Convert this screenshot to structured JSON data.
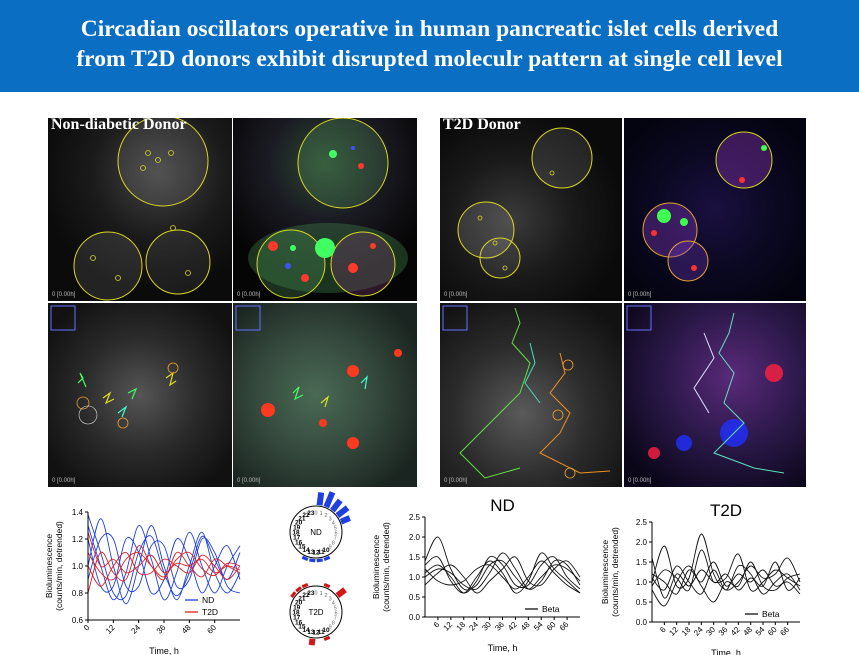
{
  "header": {
    "title_line1": "Circadian oscillators operative in human pancreatic islet cells derived",
    "title_line2": "from T2D donors exhibit disrupted moleculr pattern at single cell level",
    "background": "#0a6fc2"
  },
  "microscopy": {
    "nd_label": "Non-diabetic Donor",
    "t2d_label": "T2D Donor",
    "timestamp": "0 [0.00h]"
  },
  "chart_data": [
    {
      "type": "line",
      "title": "",
      "xlabel": "Time, h",
      "ylabel_line1": "Bioluminescence",
      "ylabel_line2": "(counts/min, detrended)",
      "xlim": [
        0,
        72
      ],
      "ylim": [
        0.6,
        1.4
      ],
      "xticks": [
        "0",
        "12",
        "24",
        "36",
        "48",
        "60"
      ],
      "yticks": [
        "0.6",
        "0.8",
        "1.0",
        "1.2",
        "1.4"
      ],
      "x": [
        0,
        6,
        12,
        18,
        24,
        30,
        36,
        42,
        48,
        54,
        60,
        66,
        72
      ],
      "legend": "bottom-right",
      "series": [
        {
          "name": "ND",
          "color": "#1f3fe0",
          "lines": [
            [
              1.3,
              1.0,
              0.75,
              0.95,
              1.3,
              1.05,
              0.75,
              0.95,
              1.25,
              1.0,
              0.8,
              1.0,
              1.15
            ],
            [
              1.0,
              1.35,
              1.0,
              0.72,
              1.0,
              1.3,
              1.0,
              0.75,
              1.0,
              1.25,
              0.95,
              0.8,
              0.95
            ],
            [
              1.2,
              0.85,
              0.85,
              1.2,
              1.1,
              0.8,
              0.9,
              1.2,
              1.05,
              0.8,
              1.0,
              1.15,
              0.9
            ],
            [
              0.9,
              1.2,
              1.2,
              0.85,
              0.85,
              1.15,
              1.15,
              0.85,
              0.9,
              1.2,
              1.1,
              0.85,
              0.8
            ],
            [
              1.38,
              1.1,
              0.8,
              0.78,
              1.1,
              1.22,
              0.95,
              0.78,
              0.95,
              1.22,
              1.05,
              0.9,
              1.1
            ]
          ]
        },
        {
          "name": "T2D",
          "color": "#e02020",
          "lines": [
            [
              1.1,
              0.95,
              0.9,
              1.05,
              1.1,
              1.0,
              0.92,
              1.05,
              1.1,
              0.98,
              0.93,
              1.02,
              1.0
            ],
            [
              1.25,
              1.0,
              1.05,
              0.95,
              1.0,
              1.08,
              0.95,
              1.02,
              1.0,
              1.05,
              0.95,
              1.0,
              0.97
            ],
            [
              0.8,
              1.1,
              0.95,
              0.9,
              1.15,
              1.0,
              0.9,
              1.1,
              1.0,
              0.92,
              1.05,
              1.0,
              0.95
            ],
            [
              1.0,
              0.85,
              1.0,
              1.1,
              0.95,
              0.95,
              1.05,
              1.0,
              0.95,
              1.08,
              1.0,
              0.9,
              1.0
            ]
          ]
        }
      ]
    },
    {
      "type": "rose",
      "title": "ND",
      "hour_labels": [
        "0",
        "1",
        "2",
        "3",
        "4",
        "5",
        "6",
        "7",
        "8",
        "9",
        "10",
        "11",
        "12",
        "13",
        "14",
        "15",
        "16",
        "17",
        "18",
        "19",
        "20",
        "21",
        "22",
        "23"
      ],
      "color": "#1f3fe0",
      "counts": [
        4,
        5,
        4,
        4,
        3,
        0,
        0,
        0,
        0,
        0,
        1,
        1,
        1,
        1,
        0,
        0,
        0,
        0,
        0,
        0,
        0,
        0,
        0,
        0
      ]
    },
    {
      "type": "rose",
      "title": "T2D",
      "hour_labels": [
        "0",
        "1",
        "2",
        "3",
        "4",
        "5",
        "6",
        "7",
        "8",
        "9",
        "10",
        "11",
        "12",
        "13",
        "14",
        "15",
        "16",
        "17",
        "18",
        "19",
        "20",
        "21",
        "22",
        "23"
      ],
      "color": "#d01818",
      "counts": [
        0,
        1,
        0,
        3,
        0,
        0,
        0,
        0,
        0,
        0,
        1,
        0,
        2,
        0,
        0,
        0,
        0,
        0,
        0,
        0,
        1,
        1,
        1,
        0
      ]
    },
    {
      "type": "line",
      "title": "ND",
      "xlabel": "Time, h",
      "ylabel_line1": "Bioluminescence",
      "ylabel_line2": "(counts/min, detrended)",
      "xlim": [
        0,
        72
      ],
      "ylim": [
        0,
        2.5
      ],
      "xticks": [
        "6",
        "12",
        "18",
        "24",
        "30",
        "36",
        "42",
        "48",
        "54",
        "60",
        "66"
      ],
      "yticks": [
        "0.0",
        "0.5",
        "1.0",
        "1.5",
        "2.0",
        "2.5"
      ],
      "x": [
        0,
        6,
        12,
        18,
        24,
        30,
        36,
        42,
        48,
        54,
        60,
        66,
        72
      ],
      "legend": "bottom-right",
      "series": [
        {
          "name": "Beta",
          "color": "#111111",
          "lines": [
            [
              1.4,
              2.0,
              1.2,
              0.7,
              0.8,
              1.3,
              1.4,
              1.0,
              0.7,
              1.0,
              1.3,
              1.2,
              0.9
            ],
            [
              1.1,
              1.3,
              1.0,
              0.6,
              0.9,
              1.5,
              1.3,
              0.8,
              0.8,
              1.3,
              1.5,
              1.0,
              0.7
            ],
            [
              1.0,
              1.2,
              1.1,
              0.8,
              0.7,
              1.1,
              1.6,
              1.2,
              0.7,
              0.9,
              1.4,
              1.3,
              0.8
            ],
            [
              1.2,
              0.9,
              0.8,
              0.9,
              1.2,
              1.3,
              1.0,
              0.7,
              1.0,
              1.4,
              1.1,
              0.8,
              0.6
            ],
            [
              0.8,
              1.1,
              1.3,
              1.0,
              0.6,
              0.9,
              1.2,
              1.5,
              0.9,
              0.8,
              1.2,
              1.4,
              1.0
            ],
            [
              1.3,
              1.5,
              0.9,
              0.6,
              1.0,
              1.4,
              1.1,
              0.6,
              0.9,
              1.6,
              1.2,
              0.9,
              0.6
            ]
          ]
        }
      ]
    },
    {
      "type": "line",
      "title": "T2D",
      "xlabel": "Time, h",
      "ylabel_line1": "Bioluminescence",
      "ylabel_line2": "(counts/min, detrended)",
      "xlim": [
        0,
        72
      ],
      "ylim": [
        0,
        2.5
      ],
      "xticks": [
        "6",
        "12",
        "18",
        "24",
        "30",
        "36",
        "42",
        "48",
        "54",
        "60",
        "66"
      ],
      "yticks": [
        "0.0",
        "0.5",
        "1.0",
        "1.5",
        "2.0",
        "2.5"
      ],
      "x": [
        0,
        6,
        12,
        18,
        24,
        30,
        36,
        42,
        48,
        54,
        60,
        66,
        72
      ],
      "legend": "bottom-right",
      "series": [
        {
          "name": "Beta",
          "color": "#111111",
          "lines": [
            [
              1.0,
              1.9,
              0.9,
              1.1,
              2.2,
              1.2,
              0.8,
              1.0,
              1.4,
              1.1,
              1.2,
              1.6,
              1.0
            ],
            [
              1.6,
              0.6,
              1.2,
              0.9,
              1.3,
              1.0,
              1.1,
              1.7,
              0.8,
              1.0,
              1.3,
              1.1,
              0.9
            ],
            [
              0.8,
              0.4,
              1.0,
              1.4,
              0.9,
              0.5,
              1.0,
              0.9,
              1.5,
              0.9,
              0.8,
              1.1,
              1.2
            ],
            [
              1.2,
              1.0,
              0.7,
              1.3,
              1.0,
              1.5,
              0.9,
              1.2,
              1.0,
              1.3,
              0.9,
              1.0,
              0.7
            ],
            [
              0.9,
              1.3,
              1.1,
              0.8,
              1.8,
              1.0,
              1.2,
              0.8,
              1.1,
              0.9,
              1.5,
              0.8,
              1.1
            ],
            [
              1.1,
              0.8,
              1.4,
              1.0,
              0.7,
              1.3,
              0.8,
              1.4,
              1.2,
              0.7,
              1.0,
              1.2,
              0.8
            ]
          ]
        }
      ]
    }
  ]
}
